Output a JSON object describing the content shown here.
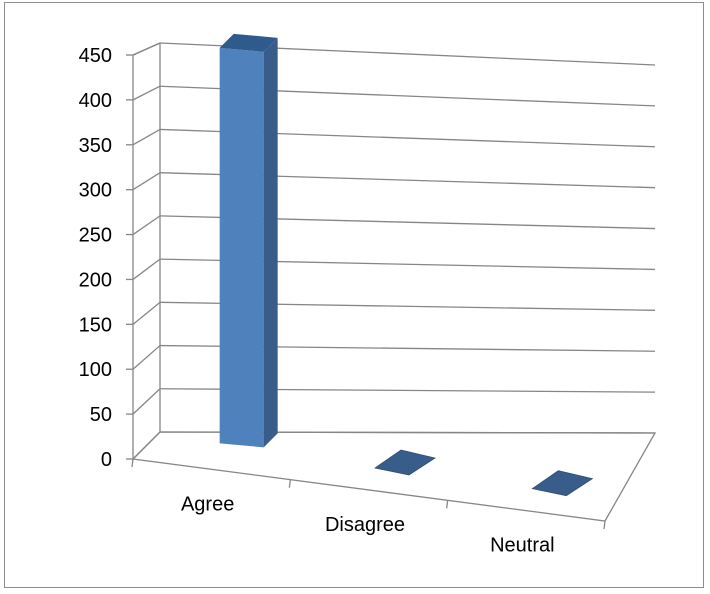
{
  "chart_data": {
    "type": "bar",
    "style": "3d-column",
    "categories": [
      "Agree",
      "Disagree",
      "Neutral"
    ],
    "values": [
      445,
      0,
      0
    ],
    "ylim": [
      0,
      450
    ],
    "yticks": [
      0,
      50,
      100,
      150,
      200,
      250,
      300,
      350,
      400,
      450
    ],
    "grid": true,
    "legend": "none",
    "bar_color": "#4f81bd",
    "bar_side_color": "#385d8a",
    "bar_top_color": "#2e5a8c",
    "grid_color": "#868686"
  }
}
